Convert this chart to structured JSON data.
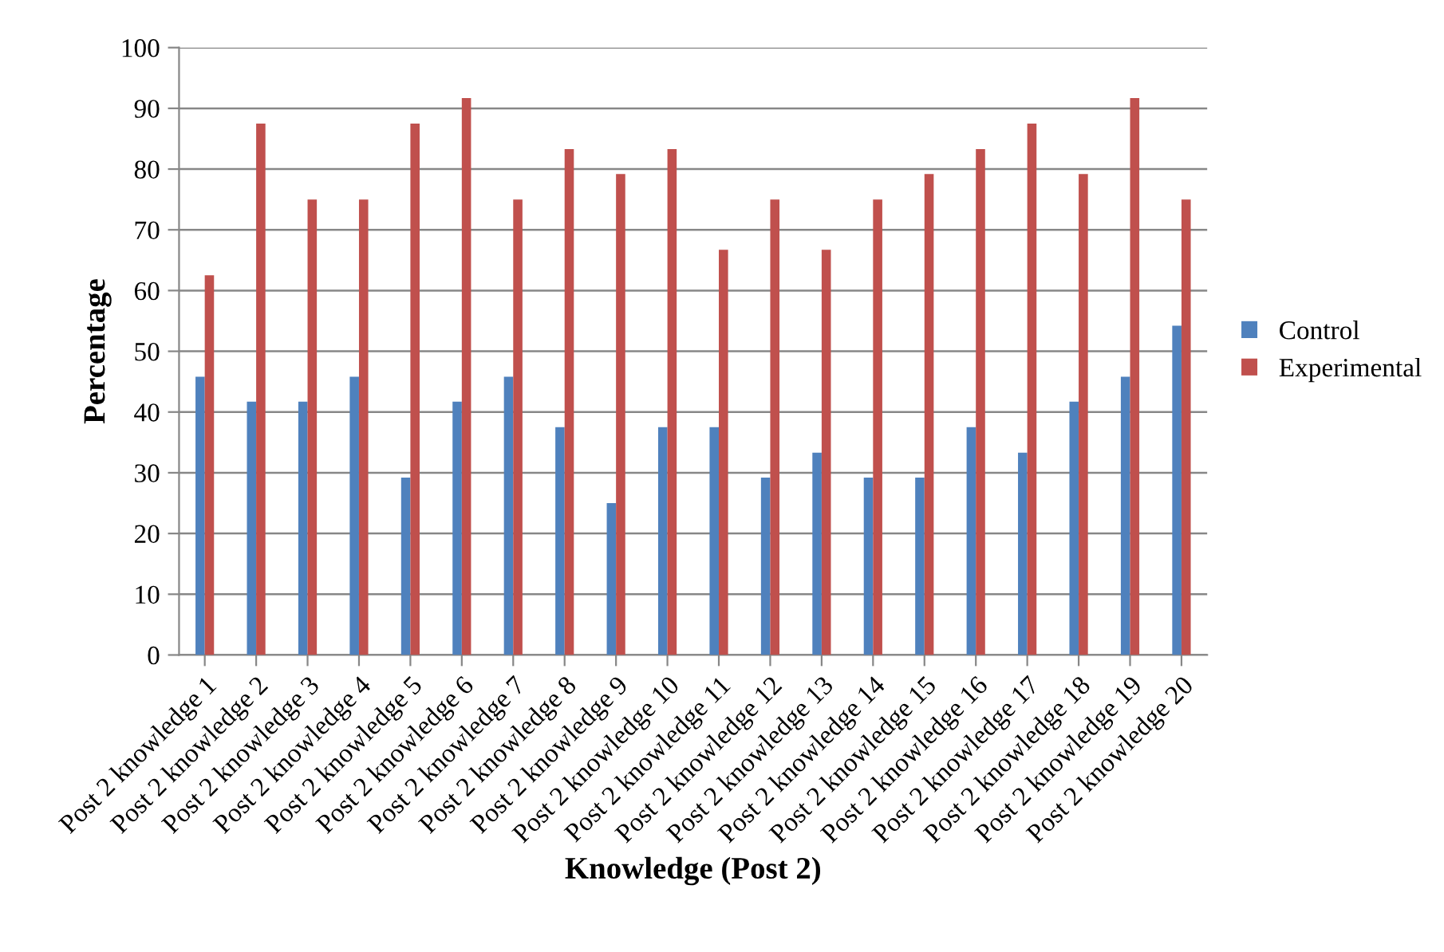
{
  "chart_data": {
    "type": "bar",
    "xlabel": "Knowledge (Post 2)",
    "ylabel": "Percentage",
    "categories": [
      "Post 2 knowledge 1",
      "Post 2 knowledge 2",
      "Post 2 knowledge 3",
      "Post 2 knowledge 4",
      "Post 2 knowledge 5",
      "Post 2 knowledge 6",
      "Post 2 knowledge 7",
      "Post 2 knowledge 8",
      "Post 2 knowledge 9",
      "Post 2 knowledge 10",
      "Post 2 knowledge 11",
      "Post 2 knowledge 12",
      "Post 2 knowledge 13",
      "Post 2 knowledge 14",
      "Post 2 knowledge 15",
      "Post 2 knowledge 16",
      "Post 2 knowledge 17",
      "Post 2 knowledge 18",
      "Post 2 knowledge 19",
      "Post 2 knowledge 20"
    ],
    "series": [
      {
        "name": "Control",
        "color": "#4f81bd",
        "values": [
          45.8,
          41.7,
          41.7,
          45.8,
          29.2,
          41.7,
          45.8,
          37.5,
          25,
          37.5,
          37.5,
          29.2,
          33.3,
          29.2,
          29.2,
          37.5,
          33.3,
          41.7,
          45.8,
          54.2
        ]
      },
      {
        "name": "Experimental",
        "color": "#c0504d",
        "values": [
          62.5,
          87.5,
          75,
          75,
          87.5,
          91.7,
          75,
          83.3,
          79.2,
          83.3,
          66.7,
          75,
          66.7,
          75,
          79.2,
          83.3,
          87.5,
          79.2,
          91.7,
          75
        ]
      }
    ],
    "ylim": [
      0,
      100
    ],
    "yticks": [
      0,
      10,
      20,
      30,
      40,
      50,
      60,
      70,
      80,
      90,
      100
    ],
    "grid": "y",
    "legend": "right"
  }
}
